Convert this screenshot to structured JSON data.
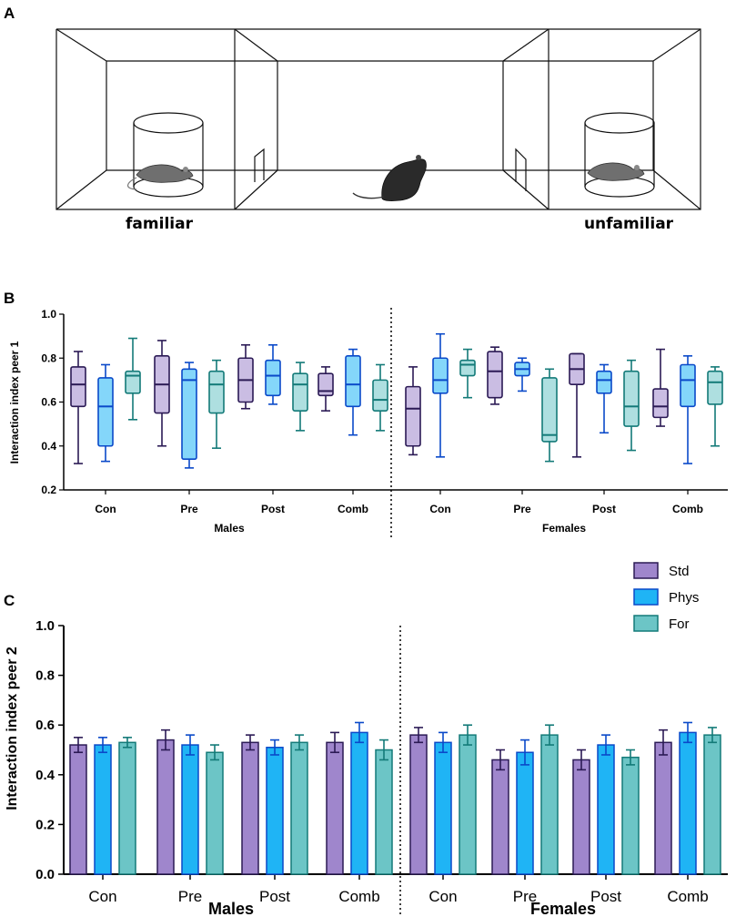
{
  "panels": {
    "a": "A",
    "b": "B",
    "c": "C"
  },
  "arena": {
    "left_label": "familiar",
    "right_label": "unfamiliar"
  },
  "legend": [
    {
      "name": "Std",
      "fill": "#9f86cc",
      "stroke": "#2b1a55"
    },
    {
      "name": "Phys",
      "fill": "#1fb4f5",
      "stroke": "#0a49c9"
    },
    {
      "name": "For",
      "fill": "#6cc5c6",
      "stroke": "#137a78"
    }
  ],
  "colors": {
    "axis": "#000000"
  },
  "chart_data": [
    {
      "type": "box",
      "id": "B",
      "ylabel": "Interaction index peer 1",
      "ylim": [
        0.2,
        1.0
      ],
      "yticks": [
        "0.2",
        "0.4",
        "0.6",
        "0.8",
        "1.0"
      ],
      "ytick_values": [
        0.2,
        0.4,
        0.6,
        0.8,
        1.0
      ],
      "categories": [
        "Con",
        "Pre",
        "Post",
        "Comb",
        "Con",
        "Pre",
        "Post",
        "Comb"
      ],
      "groups": [
        "Males",
        "Females"
      ],
      "series": [
        {
          "name": "Std",
          "boxes": [
            {
              "min": 0.32,
              "q1": 0.58,
              "median": 0.68,
              "q3": 0.76,
              "max": 0.83
            },
            {
              "min": 0.4,
              "q1": 0.55,
              "median": 0.68,
              "q3": 0.81,
              "max": 0.88
            },
            {
              "min": 0.57,
              "q1": 0.6,
              "median": 0.7,
              "q3": 0.8,
              "max": 0.86
            },
            {
              "min": 0.56,
              "q1": 0.63,
              "median": 0.65,
              "q3": 0.73,
              "max": 0.76
            },
            {
              "min": 0.36,
              "q1": 0.4,
              "median": 0.57,
              "q3": 0.67,
              "max": 0.76
            },
            {
              "min": 0.59,
              "q1": 0.62,
              "median": 0.74,
              "q3": 0.83,
              "max": 0.85
            },
            {
              "min": 0.35,
              "q1": 0.68,
              "median": 0.75,
              "q3": 0.82,
              "max": 0.82
            },
            {
              "min": 0.49,
              "q1": 0.53,
              "median": 0.58,
              "q3": 0.66,
              "max": 0.84
            }
          ]
        },
        {
          "name": "Phys",
          "boxes": [
            {
              "min": 0.33,
              "q1": 0.4,
              "median": 0.58,
              "q3": 0.71,
              "max": 0.77
            },
            {
              "min": 0.3,
              "q1": 0.34,
              "median": 0.7,
              "q3": 0.75,
              "max": 0.78
            },
            {
              "min": 0.59,
              "q1": 0.63,
              "median": 0.72,
              "q3": 0.79,
              "max": 0.86
            },
            {
              "min": 0.45,
              "q1": 0.58,
              "median": 0.68,
              "q3": 0.81,
              "max": 0.84
            },
            {
              "min": 0.35,
              "q1": 0.64,
              "median": 0.7,
              "q3": 0.8,
              "max": 0.91
            },
            {
              "min": 0.65,
              "q1": 0.72,
              "median": 0.75,
              "q3": 0.78,
              "max": 0.8
            },
            {
              "min": 0.46,
              "q1": 0.64,
              "median": 0.7,
              "q3": 0.74,
              "max": 0.77
            },
            {
              "min": 0.32,
              "q1": 0.58,
              "median": 0.7,
              "q3": 0.77,
              "max": 0.81
            }
          ]
        },
        {
          "name": "For",
          "boxes": [
            {
              "min": 0.52,
              "q1": 0.64,
              "median": 0.72,
              "q3": 0.74,
              "max": 0.89
            },
            {
              "min": 0.39,
              "q1": 0.55,
              "median": 0.68,
              "q3": 0.74,
              "max": 0.79
            },
            {
              "min": 0.47,
              "q1": 0.56,
              "median": 0.68,
              "q3": 0.73,
              "max": 0.78
            },
            {
              "min": 0.47,
              "q1": 0.56,
              "median": 0.61,
              "q3": 0.7,
              "max": 0.77
            },
            {
              "min": 0.62,
              "q1": 0.72,
              "median": 0.77,
              "q3": 0.79,
              "max": 0.84
            },
            {
              "min": 0.33,
              "q1": 0.42,
              "median": 0.45,
              "q3": 0.71,
              "max": 0.75
            },
            {
              "min": 0.38,
              "q1": 0.49,
              "median": 0.58,
              "q3": 0.74,
              "max": 0.79
            },
            {
              "min": 0.4,
              "q1": 0.59,
              "median": 0.69,
              "q3": 0.74,
              "max": 0.76
            }
          ]
        }
      ]
    },
    {
      "type": "bar",
      "id": "C",
      "ylabel": "Interaction index peer 2",
      "ylim": [
        0.0,
        1.0
      ],
      "yticks": [
        "0.0",
        "0.2",
        "0.4",
        "0.6",
        "0.8",
        "1.0"
      ],
      "ytick_values": [
        0.0,
        0.2,
        0.4,
        0.6,
        0.8,
        1.0
      ],
      "categories": [
        "Con",
        "Pre",
        "Post",
        "Comb",
        "Con",
        "Pre",
        "Post",
        "Comb"
      ],
      "groups": [
        "Males",
        "Females"
      ],
      "series": [
        {
          "name": "Std",
          "values": [
            0.52,
            0.54,
            0.53,
            0.53,
            0.56,
            0.46,
            0.46,
            0.53
          ],
          "errors": [
            0.03,
            0.04,
            0.03,
            0.04,
            0.03,
            0.04,
            0.04,
            0.05
          ]
        },
        {
          "name": "Phys",
          "values": [
            0.52,
            0.52,
            0.51,
            0.57,
            0.53,
            0.49,
            0.52,
            0.57
          ],
          "errors": [
            0.03,
            0.04,
            0.03,
            0.04,
            0.04,
            0.05,
            0.04,
            0.04
          ]
        },
        {
          "name": "For",
          "values": [
            0.53,
            0.49,
            0.53,
            0.5,
            0.56,
            0.56,
            0.47,
            0.56
          ],
          "errors": [
            0.02,
            0.03,
            0.03,
            0.04,
            0.04,
            0.04,
            0.03,
            0.03
          ]
        }
      ]
    }
  ]
}
